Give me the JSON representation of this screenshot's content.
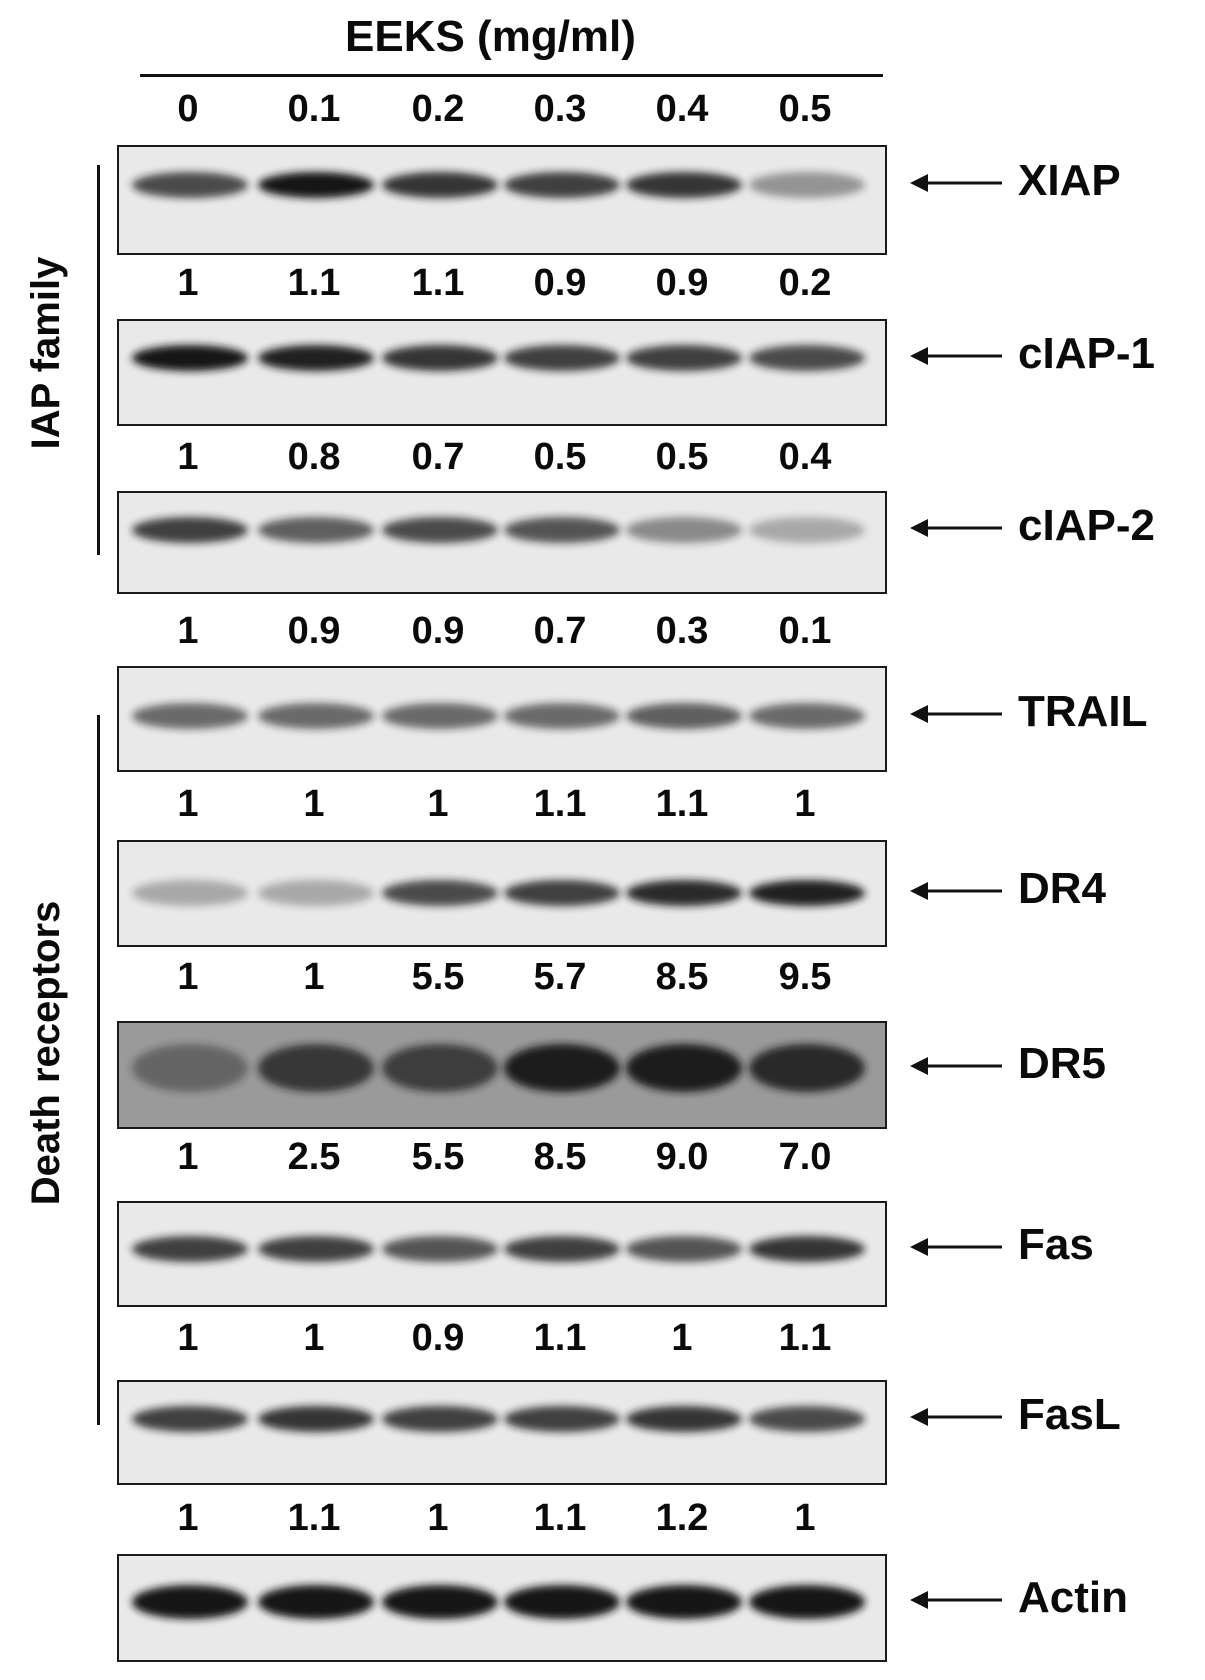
{
  "header": {
    "title": "EEKS (mg/ml)",
    "concentrations": [
      "0",
      "0.1",
      "0.2",
      "0.3",
      "0.4",
      "0.5"
    ]
  },
  "groups": {
    "iap": "IAP family",
    "death": "Death receptors"
  },
  "blots": [
    {
      "label": "XIAP",
      "ratios": [
        "1",
        "1.1",
        "1.1",
        "0.9",
        "0.9",
        "0.2"
      ],
      "band_intensity": [
        0.75,
        1.0,
        0.85,
        0.8,
        0.85,
        0.4
      ]
    },
    {
      "label": "cIAP-1",
      "ratios": [
        "1",
        "0.8",
        "0.7",
        "0.5",
        "0.5",
        "0.4"
      ],
      "band_intensity": [
        1.0,
        0.95,
        0.85,
        0.8,
        0.8,
        0.75
      ]
    },
    {
      "label": "cIAP-2",
      "ratios": [
        "1",
        "0.9",
        "0.9",
        "0.7",
        "0.3",
        "0.1"
      ],
      "band_intensity": [
        0.8,
        0.65,
        0.75,
        0.7,
        0.45,
        0.3
      ]
    },
    {
      "label": "TRAIL",
      "ratios": [
        "1",
        "1",
        "1",
        "1.1",
        "1.1",
        "1"
      ],
      "band_intensity": [
        0.6,
        0.6,
        0.6,
        0.6,
        0.65,
        0.6
      ]
    },
    {
      "label": "DR4",
      "ratios": [
        "1",
        "1",
        "5.5",
        "5.7",
        "8.5",
        "9.5"
      ],
      "band_intensity": [
        0.3,
        0.3,
        0.75,
        0.8,
        0.9,
        0.95
      ]
    },
    {
      "label": "DR5",
      "ratios": [
        "1",
        "2.5",
        "5.5",
        "8.5",
        "9.0",
        "7.0"
      ],
      "band_intensity": [
        0.4,
        0.75,
        0.7,
        0.95,
        0.95,
        0.85
      ]
    },
    {
      "label": "Fas",
      "ratios": [
        "1",
        "1",
        "0.9",
        "1.1",
        "1",
        "1.1"
      ],
      "band_intensity": [
        0.8,
        0.8,
        0.7,
        0.8,
        0.7,
        0.85
      ]
    },
    {
      "label": "FasL",
      "ratios": [
        "1",
        "1.1",
        "1",
        "1.1",
        "1.2",
        "1"
      ],
      "band_intensity": [
        0.8,
        0.85,
        0.8,
        0.8,
        0.85,
        0.75
      ]
    },
    {
      "label": "Actin",
      "ratios": [],
      "band_intensity": [
        1.0,
        1.0,
        1.0,
        1.0,
        1.0,
        1.0
      ]
    }
  ],
  "colors": {
    "ink": "#0a0a0a",
    "membrane": "#e9e9e9",
    "band": "#141414"
  }
}
